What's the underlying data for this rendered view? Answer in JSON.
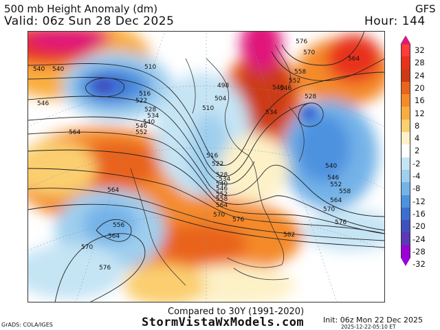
{
  "header": {
    "title": "500 mb Height Anomaly (dm)",
    "model": "GFS",
    "valid": "Valid: 06z Sun 28 Dec 2025",
    "hour": "Hour: 144"
  },
  "colorbar": {
    "labels": [
      "32",
      "28",
      "24",
      "20",
      "16",
      "12",
      "8",
      "4",
      "2",
      "-2",
      "-4",
      "-8",
      "-12",
      "-16",
      "-20",
      "-24",
      "-28",
      "-32"
    ],
    "colors": [
      "#e0177a",
      "#ff3b3b",
      "#e8321c",
      "#cc3a13",
      "#e9641c",
      "#f48a2a",
      "#f9ad3f",
      "#fbcf70",
      "#fdf1c8",
      "#ffffff",
      "#c5e4f4",
      "#9fcfee",
      "#74b3e8",
      "#4d92df",
      "#3c6ed2",
      "#4050bf",
      "#5a38b8",
      "#9b00d6"
    ]
  },
  "contour_labels": [
    {
      "text": "540"
    },
    {
      "text": "540"
    },
    {
      "text": "546"
    },
    {
      "text": "510"
    },
    {
      "text": "516"
    },
    {
      "text": "522"
    },
    {
      "text": "528"
    },
    {
      "text": "534"
    },
    {
      "text": "540"
    },
    {
      "text": "546"
    },
    {
      "text": "552"
    },
    {
      "text": "564"
    },
    {
      "text": "498"
    },
    {
      "text": "504"
    },
    {
      "text": "510"
    },
    {
      "text": "516"
    },
    {
      "text": "522"
    },
    {
      "text": "528"
    },
    {
      "text": "534"
    },
    {
      "text": "540"
    },
    {
      "text": "546"
    },
    {
      "text": "552"
    },
    {
      "text": "558"
    },
    {
      "text": "564"
    },
    {
      "text": "570"
    },
    {
      "text": "576"
    },
    {
      "text": "576"
    },
    {
      "text": "570"
    },
    {
      "text": "558"
    },
    {
      "text": "552"
    },
    {
      "text": "546"
    },
    {
      "text": "540"
    },
    {
      "text": "534"
    },
    {
      "text": "528"
    },
    {
      "text": "564"
    },
    {
      "text": "540"
    },
    {
      "text": "546"
    },
    {
      "text": "552"
    },
    {
      "text": "558"
    },
    {
      "text": "564"
    },
    {
      "text": "570"
    },
    {
      "text": "576"
    },
    {
      "text": "582"
    },
    {
      "text": "564"
    },
    {
      "text": "556"
    },
    {
      "text": "564"
    },
    {
      "text": "570"
    },
    {
      "text": "576"
    }
  ],
  "footer": {
    "compared": "Compared to 30Y (1991-2020)",
    "site": "StormVistaWxModels.com",
    "grads": "GrADS: COLA/IGES",
    "init": "Init: 06z Mon 22 Dec 2025",
    "stamp": "2025-12-22-05:10 ET"
  }
}
